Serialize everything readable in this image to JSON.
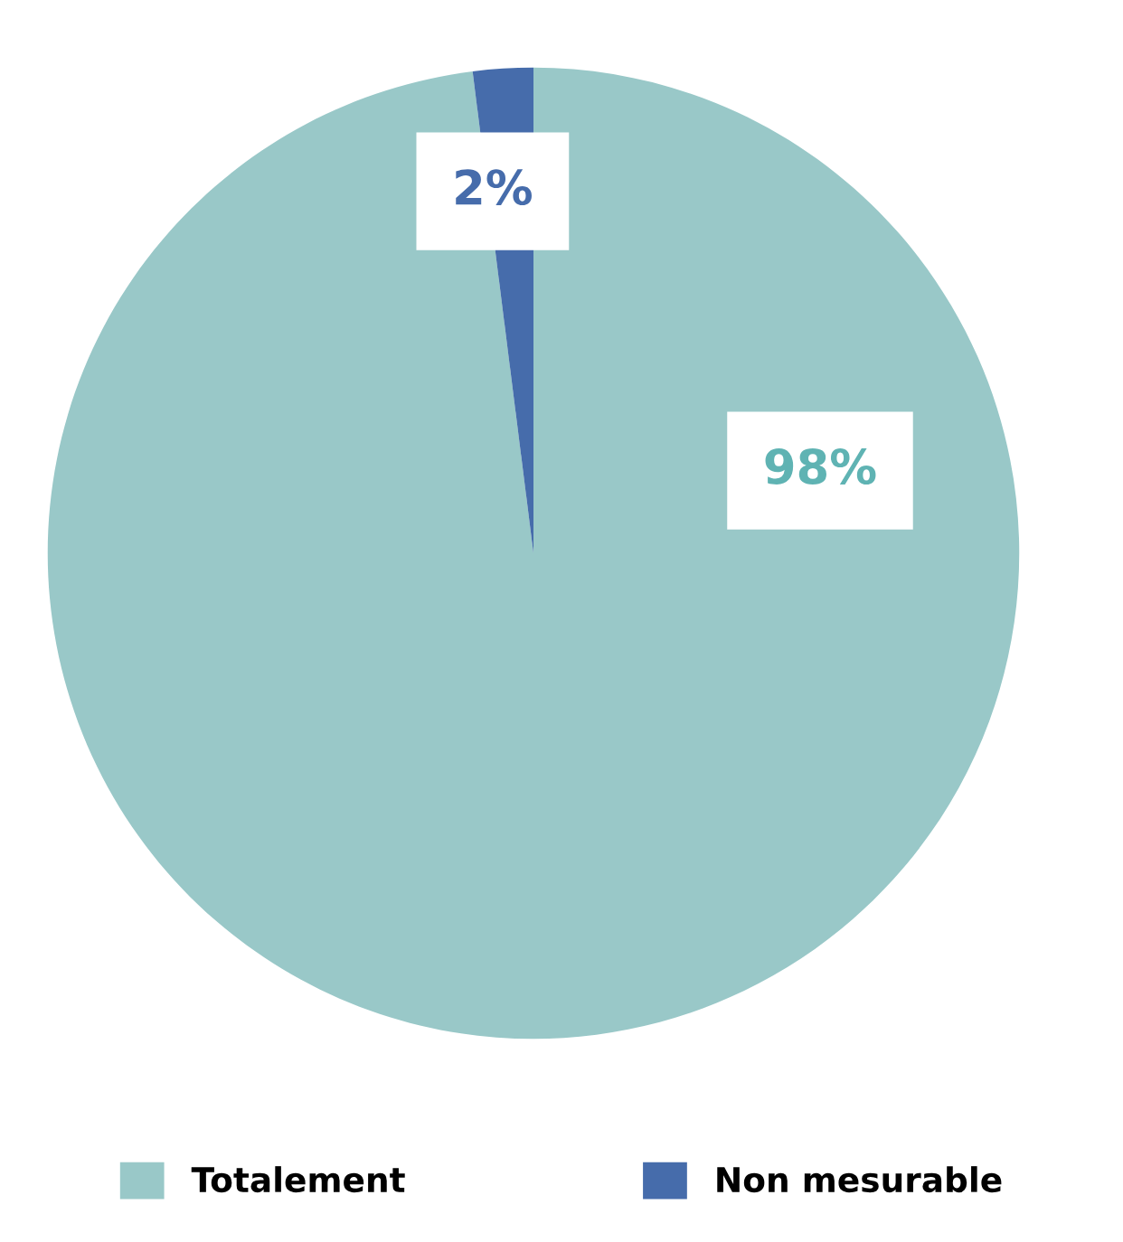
{
  "chart_data": {
    "type": "pie",
    "categories": [
      "Totalement",
      "Non mesurable"
    ],
    "values": [
      98,
      2
    ],
    "colors": [
      "#99c8c8",
      "#466cab"
    ],
    "value_labels": [
      "98%",
      "2%"
    ],
    "legend": "bottom"
  }
}
